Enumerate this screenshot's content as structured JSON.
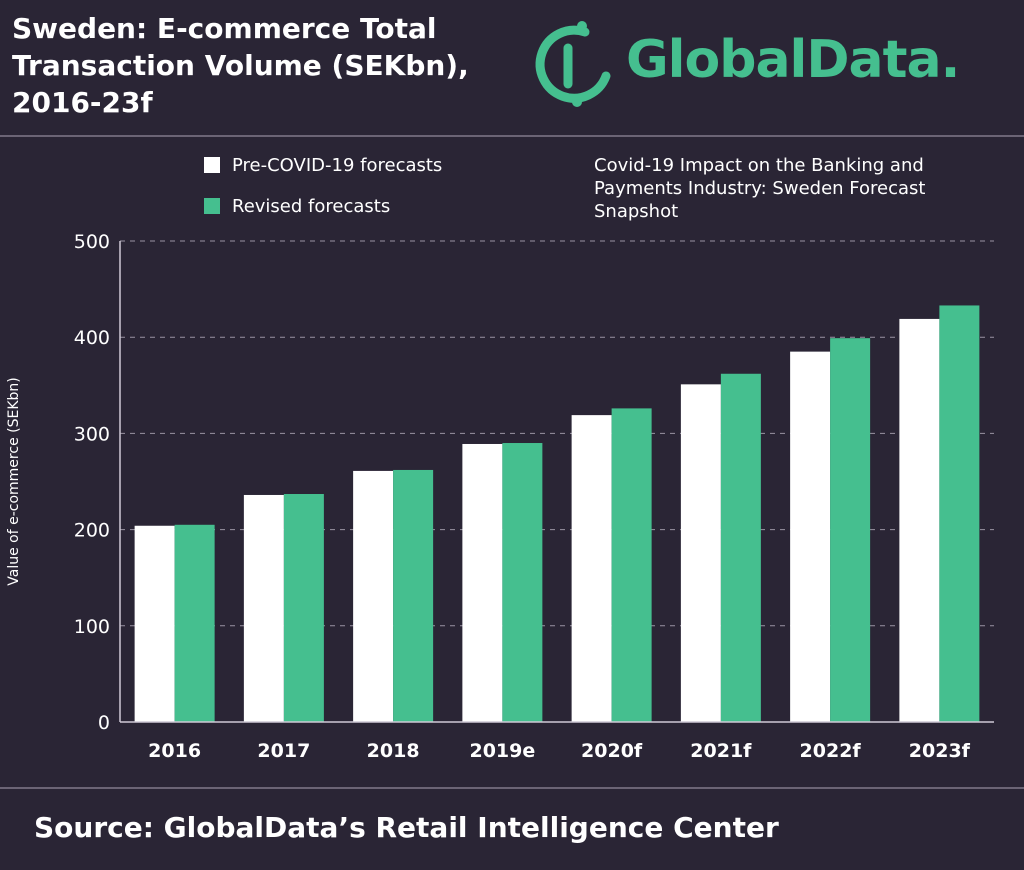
{
  "header": {
    "title": "Sweden: E-commerce Total Transaction Volume (SEKbn), 2016-23f",
    "logo_text": "GlobalData."
  },
  "subtitle_lines": [
    "Covid-19 Impact on the Banking and",
    "Payments Industry: Sweden Forecast",
    "Snapshot"
  ],
  "footer": {
    "source": "Source: GlobalData’s Retail Intelligence Center"
  },
  "colors": {
    "background": "#2a2535",
    "pre": "#ffffff",
    "revised": "#45bf8f",
    "grid": "#9a94a3"
  },
  "chart_data": {
    "type": "bar",
    "title": "Sweden: E-commerce Total Transaction Volume (SEKbn), 2016-23f",
    "subtitle": "Covid-19 Impact on the Banking and Payments Industry: Sweden Forecast Snapshot",
    "xlabel": "",
    "ylabel": "Value of e-commerce (SEKbn)",
    "ylim": [
      0,
      500
    ],
    "yticks": [
      0,
      100,
      200,
      300,
      400,
      500
    ],
    "grid": true,
    "legend_position": "top-left",
    "categories": [
      "2016",
      "2017",
      "2018",
      "2019e",
      "2020f",
      "2021f",
      "2022f",
      "2023f"
    ],
    "series": [
      {
        "name": "Pre-COVID-19 forecasts",
        "color": "#ffffff",
        "values": [
          204,
          236,
          261,
          289,
          319,
          351,
          385,
          419
        ]
      },
      {
        "name": "Revised forecasts",
        "color": "#45bf8f",
        "values": [
          205,
          237,
          262,
          290,
          326,
          362,
          399,
          433
        ]
      }
    ]
  }
}
